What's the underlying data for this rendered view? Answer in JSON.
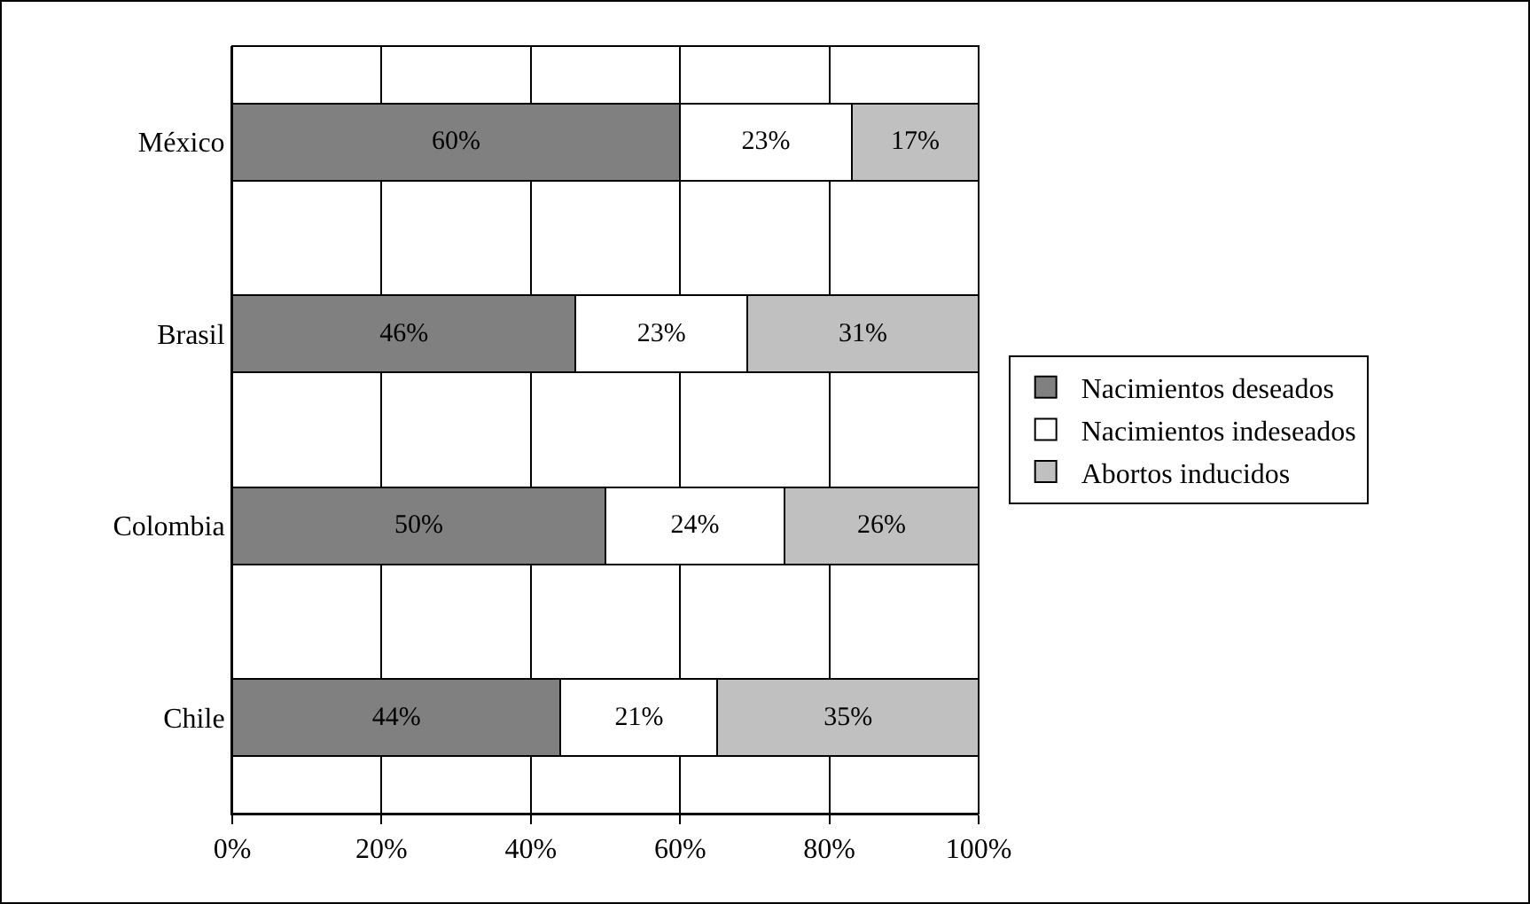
{
  "chart_data": {
    "type": "bar",
    "orientation": "horizontal",
    "stacked": true,
    "categories": [
      "México",
      "Brasil",
      "Colombia",
      "Chile"
    ],
    "series": [
      {
        "name": "Nacimientos deseados",
        "color": "#808080",
        "values": [
          60,
          46,
          50,
          44
        ],
        "value_labels": [
          "60%",
          "46%",
          "50%",
          "44%"
        ]
      },
      {
        "name": "Nacimientos indeseados",
        "color": "#ffffff",
        "values": [
          23,
          23,
          24,
          21
        ],
        "value_labels": [
          "23%",
          "23%",
          "24%",
          "21%"
        ]
      },
      {
        "name": "Abortos inducidos",
        "color": "#c0c0c0",
        "values": [
          17,
          31,
          26,
          35
        ],
        "value_labels": [
          "17%",
          "31%",
          "26%",
          "35%"
        ]
      }
    ],
    "xlim": [
      0,
      100
    ],
    "xticks": [
      {
        "value": 0,
        "label": "0%"
      },
      {
        "value": 20,
        "label": "20%"
      },
      {
        "value": 40,
        "label": "40%"
      },
      {
        "value": 60,
        "label": "60%"
      },
      {
        "value": 80,
        "label": "80%"
      },
      {
        "value": 100,
        "label": "100%"
      }
    ],
    "grid": "x",
    "legend": "right"
  }
}
